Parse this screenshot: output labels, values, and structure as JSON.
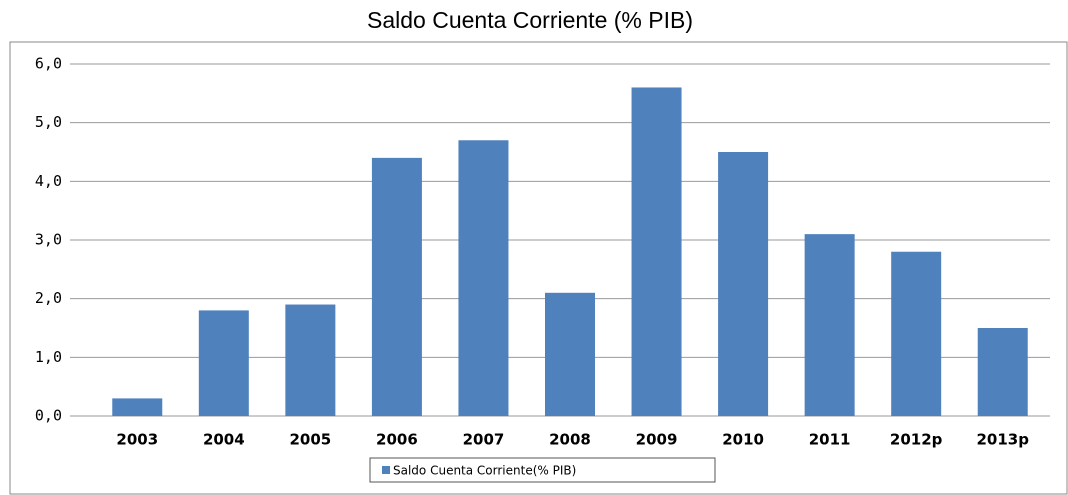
{
  "chart_data": {
    "type": "bar",
    "title": "Saldo Cuenta Corriente (% PIB)",
    "categories": [
      "2003",
      "2004",
      "2005",
      "2006",
      "2007",
      "2008",
      "2009",
      "2010",
      "2011",
      "2012p",
      "2013p"
    ],
    "series": [
      {
        "name": "Saldo Cuenta Corriente(% PIB)",
        "color": "#4f81bd",
        "values": [
          0.3,
          1.8,
          1.9,
          4.4,
          4.7,
          2.1,
          5.6,
          4.5,
          3.1,
          2.8,
          1.5
        ]
      }
    ],
    "ylim": [
      0,
      6
    ],
    "yticks": [
      {
        "value": 0,
        "label": "0,0"
      },
      {
        "value": 1,
        "label": "1,0"
      },
      {
        "value": 2,
        "label": "2,0"
      },
      {
        "value": 3,
        "label": "3,0"
      },
      {
        "value": 4,
        "label": "4,0"
      },
      {
        "value": 5,
        "label": "5,0"
      },
      {
        "value": 6,
        "label": "6,0"
      }
    ],
    "grid": true,
    "legend": "bottom"
  }
}
